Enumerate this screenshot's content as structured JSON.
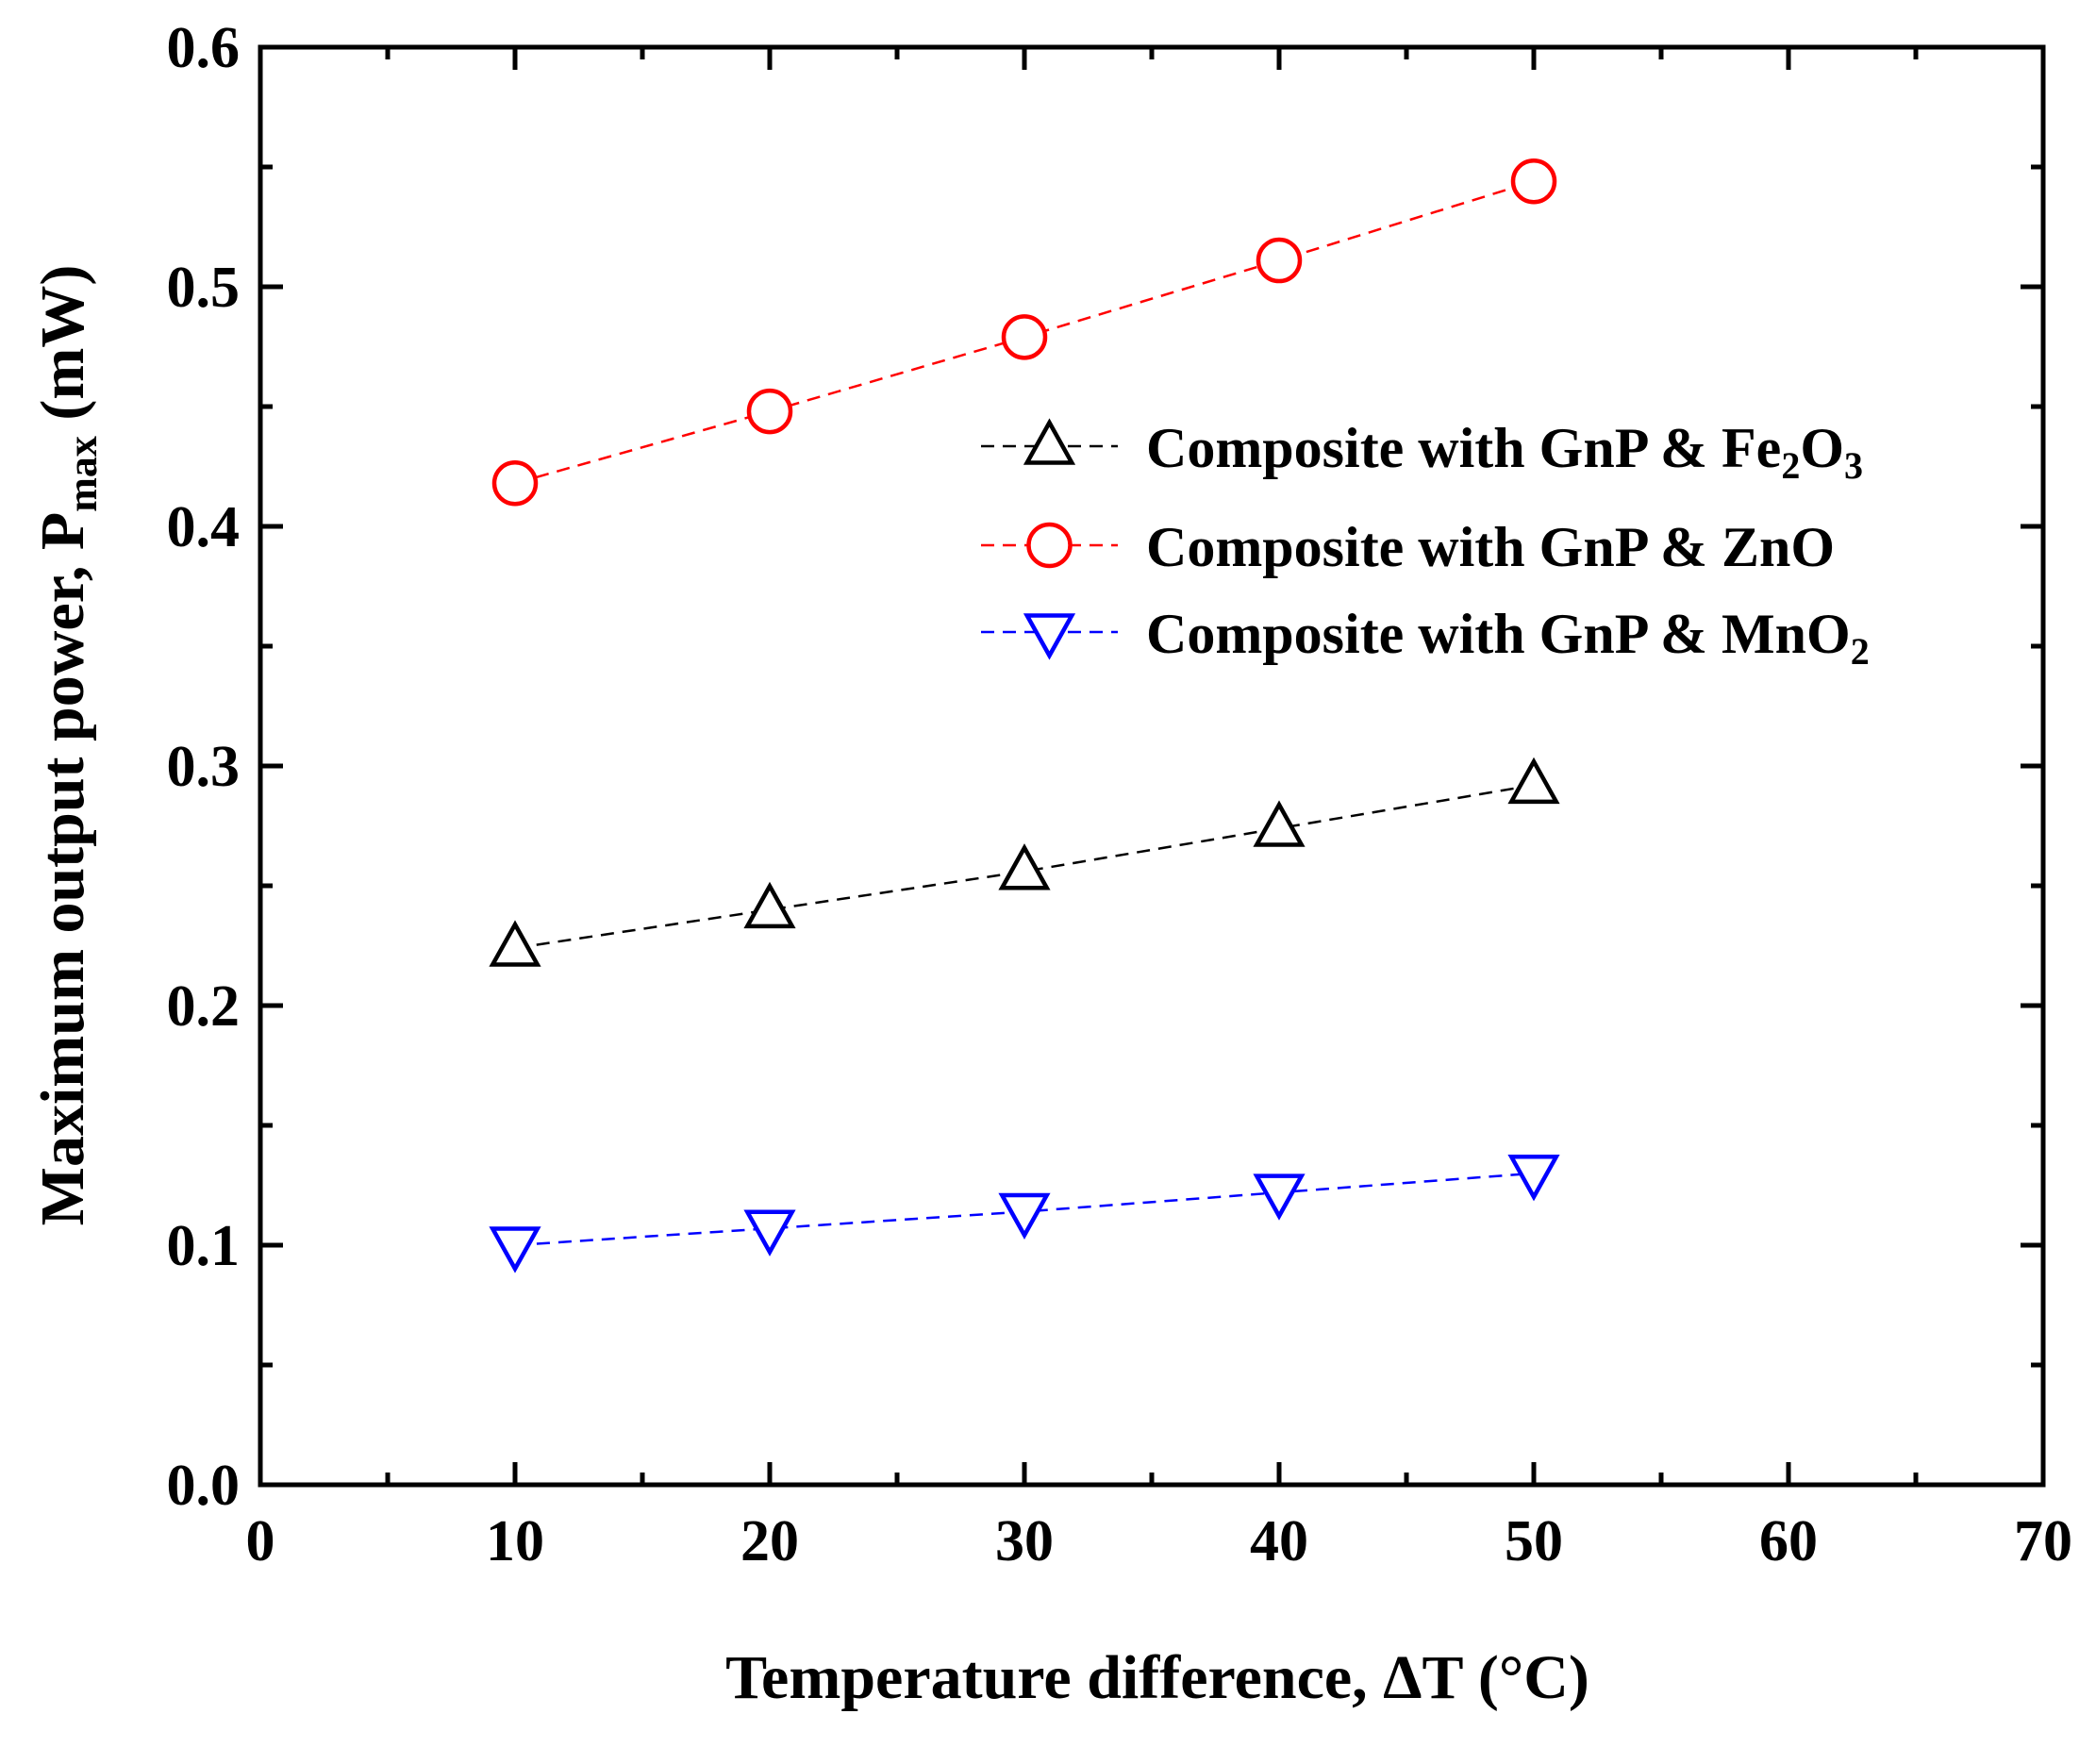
{
  "chart_data": {
    "type": "line",
    "title": "",
    "xlabel": "Temperature difference, ΔT (°C)",
    "ylabel": {
      "main": "Maximum output power, P",
      "sub": "max",
      "unit": " (mW)"
    },
    "xlim": [
      0,
      70
    ],
    "ylim": [
      0.0,
      0.6
    ],
    "xticks": [
      "0",
      "10",
      "20",
      "30",
      "40",
      "50",
      "60",
      "70"
    ],
    "yticks": [
      "0.0",
      "0.1",
      "0.2",
      "0.3",
      "0.4",
      "0.5",
      "0.6"
    ],
    "grid": false,
    "legend_position": "upper-right",
    "x": [
      10,
      20,
      30,
      40,
      50
    ],
    "series": [
      {
        "key": "fe2o3",
        "name_parts": [
          "Composite with GnP & Fe",
          "2",
          "O",
          "3"
        ],
        "marker": "triangle-up",
        "color": "#000000",
        "values": [
          0.224,
          0.24,
          0.256,
          0.274,
          0.292
        ]
      },
      {
        "key": "zno",
        "name_parts": [
          "Composite with GnP & ZnO"
        ],
        "marker": "circle",
        "color": "#ff0000",
        "values": [
          0.418,
          0.448,
          0.479,
          0.511,
          0.544
        ]
      },
      {
        "key": "mno2",
        "name_parts": [
          "Composite with GnP & MnO",
          "2"
        ],
        "marker": "triangle-down",
        "color": "#0000ff",
        "values": [
          0.1,
          0.107,
          0.114,
          0.122,
          0.13
        ]
      }
    ]
  }
}
